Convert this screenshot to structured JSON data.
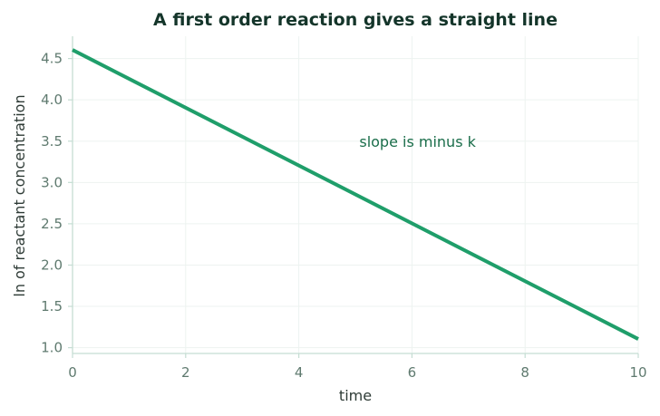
{
  "chart_data": {
    "type": "line",
    "title": "A first order reaction gives a straight line",
    "xlabel": "time",
    "ylabel": "ln of reactant concentration",
    "xlim": [
      0,
      10
    ],
    "ylim": [
      0.93,
      4.77
    ],
    "xticks": [
      0,
      2,
      4,
      6,
      8,
      10
    ],
    "xtick_labels": [
      "0",
      "2",
      "4",
      "6",
      "8",
      "10"
    ],
    "yticks": [
      1.0,
      1.5,
      2.0,
      2.5,
      3.0,
      3.5,
      4.0,
      4.5
    ],
    "ytick_labels": [
      "1.0",
      "1.5",
      "2.0",
      "2.5",
      "3.0",
      "3.5",
      "4.0",
      "4.5"
    ],
    "grid": true,
    "series": [
      {
        "x": [
          0,
          10
        ],
        "y": [
          4.605,
          1.105
        ]
      }
    ],
    "annotations": [
      {
        "text": "slope is minus k",
        "x": 6.1,
        "y": 3.43
      }
    ],
    "colors": {
      "line": "#1f9e6a",
      "title": "#14352a",
      "axis_label": "#2e3b36",
      "tick_label": "#5f7a6f",
      "annotation": "#1b6e4b",
      "spine": "#c5ddd3",
      "grid": "#edf3f0"
    }
  }
}
